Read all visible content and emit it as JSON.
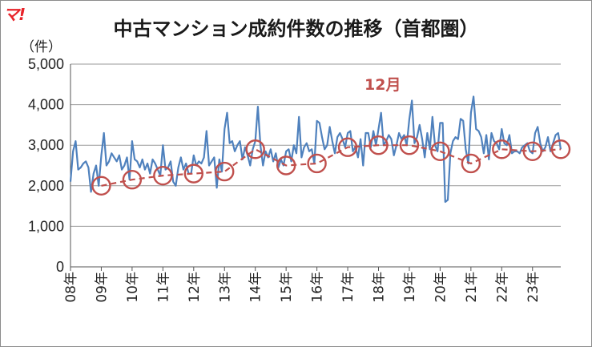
{
  "logo_text": "マ!",
  "chart_data": {
    "type": "line",
    "title": "中古マンション成約件数の推移（首都圏）",
    "ylabel": "（件）",
    "xlabel": "",
    "ylim": [
      0,
      5000
    ],
    "yticks": [
      0,
      1000,
      2000,
      3000,
      4000,
      5000
    ],
    "ytick_labels": [
      "0",
      "1,000",
      "2,000",
      "3,000",
      "4,000",
      "5,000"
    ],
    "xlim": [
      0,
      191
    ],
    "xticks": [
      {
        "pos": 0,
        "label": "08年"
      },
      {
        "pos": 12,
        "label": "09年"
      },
      {
        "pos": 24,
        "label": "10年"
      },
      {
        "pos": 36,
        "label": "11年"
      },
      {
        "pos": 48,
        "label": "12年"
      },
      {
        "pos": 60,
        "label": "13年"
      },
      {
        "pos": 72,
        "label": "14年"
      },
      {
        "pos": 84,
        "label": "15年"
      },
      {
        "pos": 96,
        "label": "16年"
      },
      {
        "pos": 108,
        "label": "17年"
      },
      {
        "pos": 120,
        "label": "18年"
      },
      {
        "pos": 132,
        "label": "19年"
      },
      {
        "pos": 144,
        "label": "20年"
      },
      {
        "pos": 156,
        "label": "21年"
      },
      {
        "pos": 168,
        "label": "22年"
      },
      {
        "pos": 180,
        "label": "23年"
      }
    ],
    "grid": true,
    "annotation": "12月",
    "monthly_color": "#4f81bd",
    "december_color": "#c0504d",
    "series": [
      {
        "x_start": 0,
        "values": [
          2100,
          2850,
          3100,
          2400,
          2450,
          2550,
          2600,
          2450,
          1850,
          2300,
          2500,
          2000,
          2750,
          3300,
          2500,
          2600,
          2800,
          2700,
          2600,
          2750,
          2400,
          2500,
          2700,
          2150,
          3100,
          2650,
          2600,
          2450,
          2650,
          2400,
          2550,
          2300,
          2650,
          2550,
          2400,
          2250,
          3000,
          2400,
          2450,
          2600,
          2100,
          2000,
          2450,
          2700,
          2400,
          2550,
          2300,
          2300,
          2750,
          2500,
          2600,
          2550,
          2700,
          3350,
          2500,
          2600,
          2700,
          1950,
          2650,
          2350,
          3400,
          3800,
          3050,
          3100,
          2850,
          3000,
          3100,
          2650,
          2950,
          2750,
          2500,
          2900,
          3100,
          3950,
          3000,
          2500,
          2850,
          2700,
          2900,
          2600,
          2800,
          2450,
          2650,
          2500,
          2850,
          2900,
          2600,
          3000,
          2800,
          3700,
          2700,
          2950,
          3050,
          2850,
          2900,
          2550,
          3600,
          3550,
          3200,
          2900,
          3000,
          3450,
          3100,
          2800,
          3200,
          3300,
          3150,
          2950,
          3300,
          3350,
          2850,
          2950,
          2700,
          3150,
          2500,
          3300,
          3300,
          2950,
          3350,
          3000,
          3400,
          3800,
          3000,
          3100,
          3250,
          3150,
          2750,
          3000,
          3300,
          3150,
          3250,
          3000,
          3650,
          4100,
          3050,
          3200,
          3500,
          3150,
          2700,
          3300,
          2900,
          3700,
          3000,
          2850,
          3550,
          3550,
          1600,
          1650,
          2800,
          3100,
          3200,
          3150,
          3650,
          3600,
          2900,
          2550,
          3800,
          4200,
          3400,
          3350,
          3200,
          2800,
          3250,
          2650,
          3300,
          3100,
          3050,
          2900,
          3400,
          3050,
          3000,
          3250,
          2800,
          2850,
          2850,
          2800,
          2950,
          3000,
          3050,
          2850,
          2800,
          3300,
          3450,
          3050,
          2850,
          2950,
          3200,
          2850,
          3050,
          3250,
          3300,
          2900
        ]
      },
      {
        "name": "12月",
        "x": [
          12,
          24,
          36,
          48,
          60,
          72,
          84,
          96,
          108,
          120,
          132,
          144,
          156,
          168,
          180,
          191
        ],
        "values": [
          2000,
          2150,
          2250,
          2300,
          2350,
          2900,
          2500,
          2550,
          2950,
          3000,
          3000,
          2850,
          2550,
          2900,
          2850,
          2900
        ]
      }
    ]
  }
}
